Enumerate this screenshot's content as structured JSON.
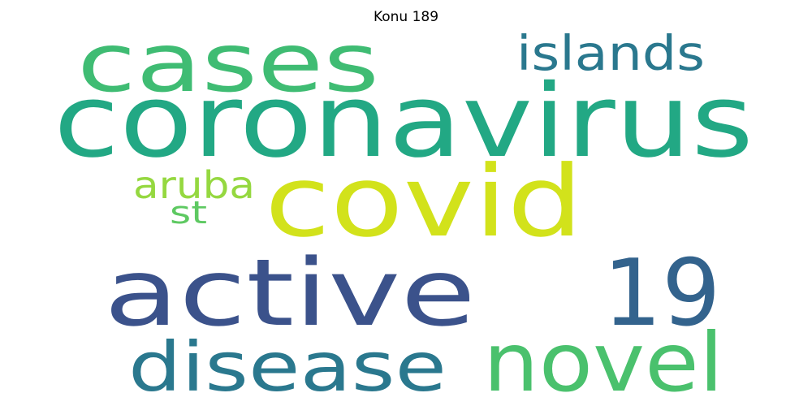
{
  "title": "Konu 189",
  "words": [
    {
      "text": "coronavirus",
      "color": "#22a884"
    },
    {
      "text": "cases",
      "color": "#3fbc73"
    },
    {
      "text": "islands",
      "color": "#2a788e"
    },
    {
      "text": "covid",
      "color": "#d2e21b"
    },
    {
      "text": "aruba",
      "color": "#95d840"
    },
    {
      "text": "st",
      "color": "#5ec962"
    },
    {
      "text": "active",
      "color": "#3b528b"
    },
    {
      "text": "19",
      "color": "#33638d"
    },
    {
      "text": "disease",
      "color": "#2a788e"
    },
    {
      "text": "novel",
      "color": "#4ac16d"
    }
  ]
}
